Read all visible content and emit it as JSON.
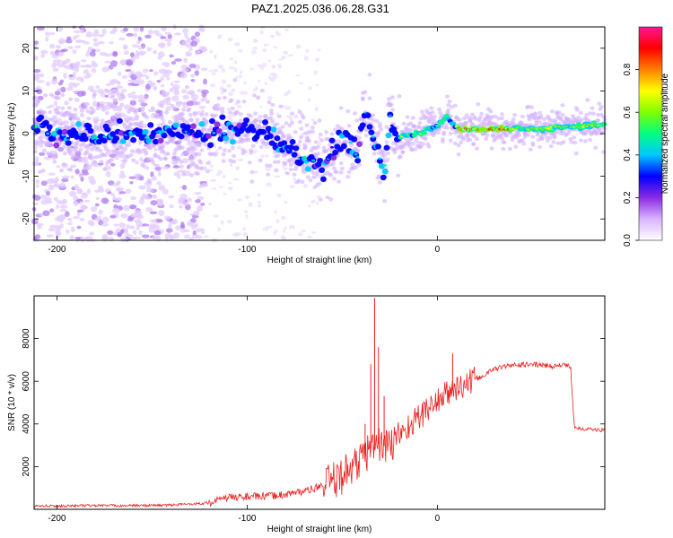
{
  "figure_title": "PAZ1.2025.036.06.28.G31",
  "chart_data": [
    {
      "type": "heatmap",
      "xlabel": "Height of straight line (km)",
      "ylabel": "Frequency (Hz)",
      "xlim": [
        -212,
        88
      ],
      "ylim": [
        -25,
        25
      ],
      "xticks": [
        -200,
        -100,
        0
      ],
      "yticks": [
        -20,
        -10,
        0,
        10,
        20
      ],
      "grid": false,
      "colorbar": {
        "label": "Normalized spectral amplitude",
        "range": [
          0,
          1
        ],
        "ticks": [
          "0.0",
          "0.2",
          "0.4",
          "0.6",
          "0.8"
        ],
        "colormap": [
          "#ffffff",
          "#d9b3ff",
          "#8a2be2",
          "#0000ff",
          "#00c8ff",
          "#00ff80",
          "#80ff00",
          "#ffff00",
          "#ff8000",
          "#ff0000",
          "#ff1493"
        ]
      },
      "ridge": [
        {
          "x": -205,
          "y": 0.0
        },
        {
          "x": -160,
          "y": 0.3
        },
        {
          "x": -130,
          "y": 0.0
        },
        {
          "x": -110,
          "y": 0.5
        },
        {
          "x": -95,
          "y": 1.0
        },
        {
          "x": -85,
          "y": -1.5
        },
        {
          "x": -70,
          "y": -5.0
        },
        {
          "x": -60,
          "y": -8.0
        },
        {
          "x": -50,
          "y": -1.0
        },
        {
          "x": -42,
          "y": -5.0
        },
        {
          "x": -38,
          "y": 6.0
        },
        {
          "x": -32,
          "y": -3.0
        },
        {
          "x": -28,
          "y": -8.0
        },
        {
          "x": -25,
          "y": 4.0
        },
        {
          "x": -20,
          "y": -1.0
        },
        {
          "x": -10,
          "y": 0.0
        },
        {
          "x": 0,
          "y": 2.0
        },
        {
          "x": 5,
          "y": 4.0
        },
        {
          "x": 12,
          "y": 1.0
        },
        {
          "x": 40,
          "y": 1.0
        },
        {
          "x": 88,
          "y": 2.0
        }
      ]
    },
    {
      "type": "line",
      "xlabel": "Height of straight line (km)",
      "ylabel": "SNR (10 * v/v)",
      "xlim": [
        -212,
        88
      ],
      "ylim": [
        0,
        10000
      ],
      "xticks": [
        -200,
        -100,
        0
      ],
      "yticks": [
        2000,
        4000,
        6000,
        8000
      ],
      "grid": false,
      "color": "#ee2020",
      "series": [
        {
          "x": [
            -212,
            -200,
            -180,
            -160,
            -140,
            -120,
            -110,
            -100,
            -90,
            -80,
            -70,
            -60,
            -55,
            -50,
            -45,
            -40,
            -36,
            -33,
            -30,
            -27,
            -24,
            -20,
            -15,
            -10,
            -5,
            0,
            5,
            10,
            15,
            20,
            25,
            30,
            40,
            50,
            60,
            65,
            70,
            72,
            75,
            80,
            88
          ],
          "y": [
            150,
            150,
            180,
            170,
            200,
            300,
            550,
            600,
            600,
            700,
            850,
            1100,
            1300,
            1600,
            2000,
            2300,
            2800,
            3000,
            3100,
            2900,
            3000,
            3500,
            3900,
            4300,
            4700,
            5100,
            5400,
            5700,
            5800,
            6100,
            6300,
            6600,
            6750,
            6800,
            6700,
            6750,
            6700,
            3850,
            3800,
            3750,
            3700
          ]
        }
      ],
      "spikes": [
        {
          "x": -33,
          "y": 9900
        },
        {
          "x": -35,
          "y": 6800
        },
        {
          "x": -31,
          "y": 7600
        },
        {
          "x": -28,
          "y": 5300
        },
        {
          "x": -38,
          "y": 4000
        },
        {
          "x": 8,
          "y": 7300
        }
      ]
    }
  ]
}
